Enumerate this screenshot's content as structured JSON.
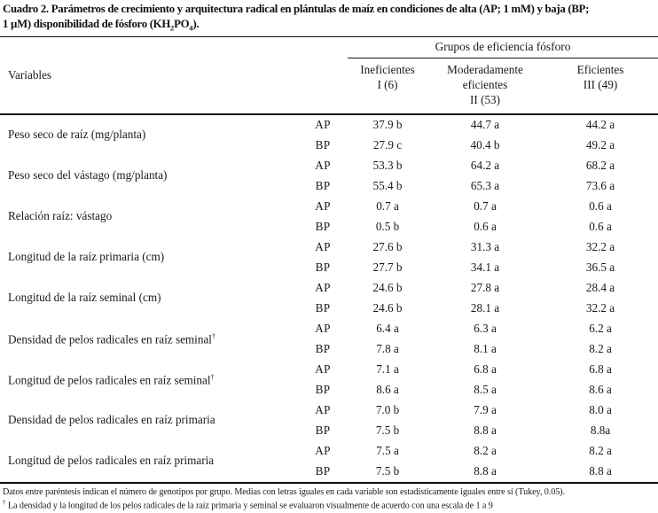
{
  "title": {
    "pre": "Cuadro 2. Parámetros de crecimiento y arquitectura radical en plántulas de maíz en condiciones de alta (AP; 1 mM) y baja (BP;\n1 µM) disponibilidad de fósforo (KH",
    "sub1": "2",
    "mid": "PO",
    "sub2": "4",
    "post": ")."
  },
  "symbols": {
    "dagger": "†"
  },
  "table": {
    "variables_header": "Variables",
    "group_header": "Grupos de eficiencia fósforo",
    "column_headers": [
      "Ineficientes\nI (6)",
      "Moderadamente\neficientes\nII (53)",
      "Eficientes\nIII (49)"
    ],
    "condition_labels": {
      "high": "AP",
      "low": "BP"
    },
    "rows": [
      {
        "variable": "Peso seco de raíz (mg/planta)",
        "dagger": false,
        "ap": [
          "37.9 b",
          "44.7 a",
          "44.2 a"
        ],
        "bp": [
          "27.9 c",
          "40.4 b",
          "49.2 a"
        ]
      },
      {
        "variable": "Peso seco del vástago (mg/planta)",
        "dagger": false,
        "ap": [
          "53.3 b",
          "64.2 a",
          "68.2 a"
        ],
        "bp": [
          "55.4 b",
          "65.3 a",
          "73.6 a"
        ]
      },
      {
        "variable": "Relación raíz: vástago",
        "dagger": false,
        "ap": [
          "0.7 a",
          "0.7 a",
          "0.6 a"
        ],
        "bp": [
          "0.5 b",
          "0.6 a",
          "0.6 a"
        ]
      },
      {
        "variable": "Longitud de la raíz primaria (cm)",
        "dagger": false,
        "ap": [
          "27.6 b",
          "31.3 a",
          "32.2 a"
        ],
        "bp": [
          "27.7 b",
          "34.1 a",
          "36.5 a"
        ]
      },
      {
        "variable": "Longitud de la raíz seminal (cm)",
        "dagger": false,
        "ap": [
          "24.6 b",
          "27.8 a",
          "28.4 a"
        ],
        "bp": [
          "24.6 b",
          "28.1 a",
          "32.2 a"
        ]
      },
      {
        "variable": "Densidad de pelos radicales en raíz seminal",
        "dagger": true,
        "ap": [
          "6.4 a",
          "6.3 a",
          "6.2 a"
        ],
        "bp": [
          "7.8 a",
          "8.1 a",
          "8.2 a"
        ]
      },
      {
        "variable": "Longitud de pelos radicales en raíz seminal",
        "dagger": true,
        "ap": [
          "7.1 a",
          "6.8 a",
          "6.8 a"
        ],
        "bp": [
          "8.6 a",
          "8.5 a",
          "8.6 a"
        ]
      },
      {
        "variable": "Densidad de pelos radicales en raíz primaria",
        "dagger": false,
        "ap": [
          "7.0 b",
          "7.9 a",
          "8.0 a"
        ],
        "bp": [
          "7.5 b",
          "8.8 a",
          "8.8a"
        ]
      },
      {
        "variable": "Longitud de pelos radicales en raíz primaria",
        "dagger": false,
        "ap": [
          "7.5 a",
          "8.2 a",
          "8.2 a"
        ],
        "bp": [
          "7.5 b",
          "8.8 a",
          "8.8 a"
        ]
      }
    ]
  },
  "footnotes": {
    "note1": "Datos entre paréntesis indican el número de genotipos por grupo. Medias con letras iguales en cada variable son estadísticamente iguales entre sí (Tukey, 0.05).",
    "note2_dagger": "†",
    "note2_text": " La densidad y la longitud de los pelos radicales de la raíz primaria y seminal se evaluaron visualmente de acuerdo con una escala de 1 a 9"
  }
}
